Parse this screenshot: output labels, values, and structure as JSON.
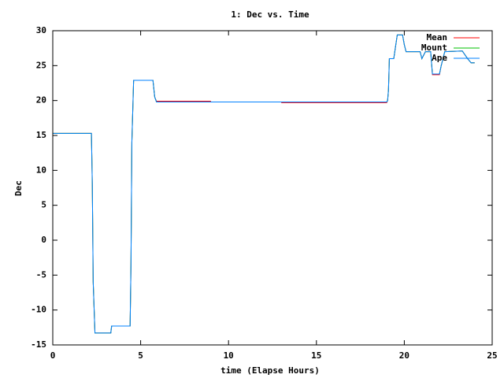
{
  "chart_data": {
    "type": "line",
    "title": "1: Dec vs. Time",
    "xlabel": "time (Elapse Hours)",
    "ylabel": "Dec",
    "x": [
      0,
      2.2,
      2.25,
      2.3,
      2.4,
      3.3,
      3.35,
      4.4,
      4.45,
      4.5,
      4.6,
      5.7,
      5.8,
      5.9,
      9,
      11,
      13,
      19,
      19.05,
      19.1,
      19.15,
      19.4,
      19.6,
      19.9,
      20.0,
      20.1,
      20.9,
      21.0,
      21.2,
      21.5,
      21.6,
      22.0,
      22.1,
      22.3,
      23.3,
      23.6,
      23.8,
      24.0
    ],
    "series": [
      {
        "name": "Mean",
        "color": "#ff0000",
        "values": [
          15.3,
          15.3,
          8,
          -6,
          -13.3,
          -13.3,
          -12.3,
          -12.3,
          -3.5,
          14,
          22.9,
          22.9,
          20.5,
          19.9,
          19.9,
          null,
          19.7,
          19.7,
          20,
          21.5,
          26,
          26,
          29.4,
          29.4,
          28,
          27,
          27,
          26,
          27,
          27,
          23.7,
          23.7,
          25,
          27,
          27.1,
          26,
          25.4,
          25.4
        ]
      },
      {
        "name": "Mount",
        "color": "#00c000",
        "values": [
          15.3,
          15.3,
          8,
          -6,
          -13.3,
          -13.3,
          -12.3,
          -12.3,
          -3.5,
          14,
          22.9,
          22.9,
          20.5,
          19.8,
          19.8,
          19.8,
          19.8,
          19.8,
          20,
          21.5,
          26,
          26,
          29.4,
          29.4,
          28,
          27,
          27,
          26,
          27,
          27,
          23.8,
          23.8,
          25,
          27,
          27.1,
          26,
          25.4,
          25.4
        ]
      },
      {
        "name": "Ape",
        "color": "#0080ff",
        "values": [
          15.3,
          15.3,
          8,
          -6,
          -13.3,
          -13.3,
          -12.3,
          -12.3,
          -3.5,
          14,
          22.9,
          22.9,
          20.5,
          19.8,
          19.8,
          19.8,
          19.8,
          19.8,
          20,
          21.5,
          26,
          26,
          29.4,
          29.4,
          28,
          27,
          27,
          26,
          27,
          27,
          23.8,
          23.8,
          25,
          27,
          27.1,
          26,
          25.4,
          25.4
        ]
      }
    ],
    "xlim": [
      0,
      25
    ],
    "xticks": [
      0,
      5,
      10,
      15,
      20,
      25
    ],
    "ylim": [
      -15,
      30
    ],
    "yticks": [
      -15,
      -10,
      -5,
      0,
      5,
      10,
      15,
      20,
      25,
      30
    ],
    "grid": false,
    "legend": "top-right"
  }
}
